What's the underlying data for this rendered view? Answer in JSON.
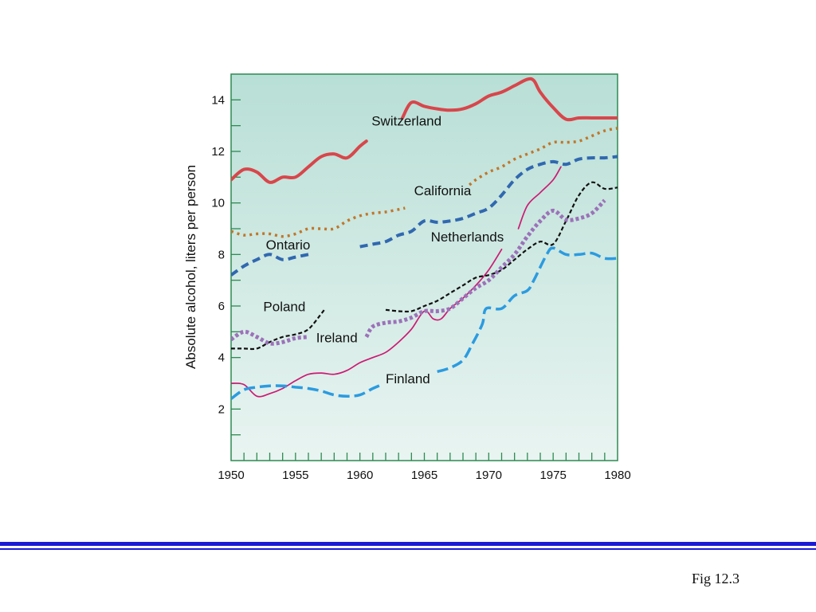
{
  "chart_data": {
    "type": "line",
    "xlabel": "",
    "ylabel": "Absolute alcohol, liters per person",
    "xlim": [
      1950,
      1980
    ],
    "ylim": [
      0,
      15
    ],
    "x_ticks": [
      1950,
      1955,
      1960,
      1965,
      1970,
      1975,
      1980
    ],
    "y_ticks": [
      2,
      4,
      6,
      8,
      10,
      12,
      14
    ],
    "grid": false,
    "legend": "inline labels",
    "background_gradient": [
      "#b8dfd6",
      "#e9f4f1"
    ],
    "series": [
      {
        "name": "Switzerland",
        "color": "#d8464b",
        "dash": "",
        "width": 4,
        "label_pos": [
          1960.9,
          13.0
        ],
        "segments": [
          [
            [
              1950,
              10.9
            ],
            [
              1951,
              11.3
            ],
            [
              1952,
              11.2
            ],
            [
              1953,
              10.8
            ],
            [
              1954,
              11.0
            ],
            [
              1955,
              11.0
            ],
            [
              1956,
              11.4
            ],
            [
              1957,
              11.8
            ],
            [
              1958,
              11.9
            ],
            [
              1959,
              11.75
            ],
            [
              1960,
              12.2
            ],
            [
              1960.5,
              12.4
            ]
          ],
          [
            [
              1963.3,
              13.3
            ],
            [
              1964,
              13.9
            ],
            [
              1965,
              13.75
            ],
            [
              1966,
              13.65
            ],
            [
              1967,
              13.6
            ],
            [
              1968,
              13.65
            ],
            [
              1969,
              13.85
            ],
            [
              1970,
              14.15
            ],
            [
              1971,
              14.3
            ],
            [
              1972,
              14.55
            ],
            [
              1973,
              14.8
            ],
            [
              1973.5,
              14.75
            ],
            [
              1974,
              14.3
            ],
            [
              1975,
              13.7
            ],
            [
              1976,
              13.25
            ],
            [
              1977,
              13.3
            ],
            [
              1978,
              13.3
            ],
            [
              1979,
              13.3
            ],
            [
              1980,
              13.3
            ]
          ]
        ]
      },
      {
        "name": "California",
        "color": "#c0762a",
        "dash": "3 5",
        "width": 3.5,
        "label_pos": [
          1964.2,
          10.3
        ],
        "segments": [
          [
            [
              1950,
              8.9
            ],
            [
              1951,
              8.75
            ],
            [
              1952,
              8.8
            ],
            [
              1953,
              8.8
            ],
            [
              1954,
              8.7
            ],
            [
              1955,
              8.8
            ],
            [
              1956,
              9.0
            ],
            [
              1957,
              9.0
            ],
            [
              1958,
              9.0
            ],
            [
              1959,
              9.3
            ],
            [
              1960,
              9.5
            ],
            [
              1961,
              9.6
            ],
            [
              1962,
              9.65
            ],
            [
              1963,
              9.75
            ],
            [
              1963.5,
              9.8
            ]
          ],
          [
            [
              1968.5,
              10.7
            ],
            [
              1969,
              10.9
            ],
            [
              1970,
              11.2
            ],
            [
              1971,
              11.4
            ],
            [
              1972,
              11.7
            ],
            [
              1973,
              11.9
            ],
            [
              1974,
              12.1
            ],
            [
              1975,
              12.35
            ],
            [
              1976,
              12.35
            ],
            [
              1977,
              12.4
            ],
            [
              1978,
              12.6
            ],
            [
              1979,
              12.8
            ],
            [
              1980,
              12.9
            ]
          ]
        ]
      },
      {
        "name": "Ontario",
        "color": "#3068b0",
        "dash": "10 6",
        "width": 4,
        "label_pos": [
          1952.7,
          8.2
        ],
        "segments": [
          [
            [
              1950,
              7.2
            ],
            [
              1951,
              7.55
            ],
            [
              1952,
              7.8
            ],
            [
              1953,
              8.0
            ],
            [
              1954,
              7.8
            ],
            [
              1955,
              7.9
            ],
            [
              1956,
              8.0
            ]
          ],
          [
            [
              1960,
              8.3
            ],
            [
              1961,
              8.4
            ],
            [
              1962,
              8.5
            ],
            [
              1963,
              8.75
            ],
            [
              1964,
              8.9
            ],
            [
              1965,
              9.3
            ],
            [
              1966,
              9.25
            ],
            [
              1967,
              9.3
            ],
            [
              1968,
              9.4
            ],
            [
              1969,
              9.6
            ],
            [
              1970,
              9.8
            ],
            [
              1971,
              10.3
            ],
            [
              1972,
              10.9
            ],
            [
              1973,
              11.3
            ],
            [
              1974,
              11.5
            ],
            [
              1975,
              11.6
            ],
            [
              1976,
              11.5
            ],
            [
              1977,
              11.7
            ],
            [
              1978,
              11.75
            ],
            [
              1979,
              11.75
            ],
            [
              1980,
              11.8
            ]
          ]
        ]
      },
      {
        "name": "Netherlands",
        "color": "#cc1a75",
        "dash": "",
        "width": 1.7,
        "label_pos": [
          1965.5,
          8.5
        ],
        "segments": [
          [
            [
              1950,
              3.0
            ],
            [
              1951,
              2.95
            ],
            [
              1952,
              2.5
            ],
            [
              1953,
              2.6
            ],
            [
              1954,
              2.8
            ],
            [
              1955,
              3.1
            ],
            [
              1956,
              3.35
            ],
            [
              1957,
              3.4
            ],
            [
              1958,
              3.35
            ],
            [
              1959,
              3.5
            ],
            [
              1960,
              3.8
            ],
            [
              1961,
              4.0
            ],
            [
              1962,
              4.2
            ],
            [
              1963,
              4.6
            ],
            [
              1964,
              5.1
            ],
            [
              1965,
              5.8
            ],
            [
              1965.7,
              5.5
            ],
            [
              1966.3,
              5.5
            ],
            [
              1967,
              5.9
            ],
            [
              1968,
              6.3
            ],
            [
              1969,
              6.8
            ],
            [
              1970,
              7.4
            ],
            [
              1971,
              8.2
            ]
          ],
          [
            [
              1972.3,
              9.0
            ],
            [
              1973,
              9.9
            ],
            [
              1974,
              10.4
            ],
            [
              1975,
              10.9
            ],
            [
              1975.6,
              11.4
            ]
          ]
        ]
      },
      {
        "name": "Poland",
        "color": "#111111",
        "dash": "5 3",
        "width": 2.2,
        "label_pos": [
          1952.5,
          5.8
        ],
        "segments": [
          [
            [
              1950,
              4.35
            ],
            [
              1951,
              4.35
            ],
            [
              1952,
              4.35
            ],
            [
              1953,
              4.6
            ],
            [
              1954,
              4.8
            ],
            [
              1955,
              4.9
            ],
            [
              1956,
              5.1
            ],
            [
              1957,
              5.7
            ],
            [
              1957.3,
              5.9
            ]
          ],
          [
            [
              1962,
              5.85
            ],
            [
              1963,
              5.8
            ],
            [
              1964,
              5.8
            ],
            [
              1965,
              6.0
            ],
            [
              1966,
              6.2
            ],
            [
              1967,
              6.5
            ],
            [
              1968,
              6.8
            ],
            [
              1969,
              7.1
            ],
            [
              1970,
              7.2
            ],
            [
              1971,
              7.4
            ],
            [
              1972,
              7.8
            ],
            [
              1973,
              8.2
            ],
            [
              1974,
              8.5
            ],
            [
              1975,
              8.4
            ],
            [
              1976,
              9.3
            ],
            [
              1977,
              10.3
            ],
            [
              1978,
              10.8
            ],
            [
              1979,
              10.55
            ],
            [
              1980,
              10.6
            ]
          ]
        ]
      },
      {
        "name": "Ireland",
        "color": "#9b72b9",
        "dash": "4 3",
        "width": 5,
        "label_pos": [
          1956.6,
          4.6
        ],
        "segments": [
          [
            [
              1950,
              4.7
            ],
            [
              1951,
              5.0
            ],
            [
              1952,
              4.8
            ],
            [
              1953,
              4.55
            ],
            [
              1954,
              4.6
            ],
            [
              1955,
              4.75
            ],
            [
              1956,
              4.8
            ]
          ],
          [
            [
              1960.5,
              4.8
            ],
            [
              1961,
              5.2
            ],
            [
              1962,
              5.35
            ],
            [
              1963,
              5.4
            ],
            [
              1964,
              5.55
            ],
            [
              1965,
              5.8
            ],
            [
              1966,
              5.8
            ],
            [
              1967,
              5.9
            ],
            [
              1968,
              6.3
            ],
            [
              1969,
              6.7
            ],
            [
              1970,
              7.0
            ],
            [
              1971,
              7.5
            ],
            [
              1972,
              8.0
            ],
            [
              1973,
              8.7
            ],
            [
              1974,
              9.3
            ],
            [
              1975,
              9.7
            ],
            [
              1976,
              9.35
            ],
            [
              1977,
              9.4
            ],
            [
              1978,
              9.6
            ],
            [
              1979,
              10.1
            ]
          ]
        ]
      },
      {
        "name": "Finland",
        "color": "#2b9be0",
        "dash": "14 6",
        "width": 3.5,
        "label_pos": [
          1962,
          3.0
        ],
        "segments": [
          [
            [
              1950,
              2.4
            ],
            [
              1951,
              2.75
            ],
            [
              1952,
              2.85
            ],
            [
              1953,
              2.9
            ],
            [
              1954,
              2.9
            ],
            [
              1955,
              2.85
            ],
            [
              1956,
              2.8
            ],
            [
              1957,
              2.7
            ],
            [
              1958,
              2.55
            ],
            [
              1959,
              2.5
            ],
            [
              1960,
              2.55
            ],
            [
              1961,
              2.8
            ],
            [
              1961.7,
              2.95
            ]
          ],
          [
            [
              1966,
              3.45
            ],
            [
              1967,
              3.6
            ],
            [
              1968,
              3.9
            ],
            [
              1968.7,
              4.5
            ],
            [
              1969.5,
              5.3
            ],
            [
              1969.8,
              5.9
            ],
            [
              1971,
              5.9
            ],
            [
              1972,
              6.4
            ],
            [
              1973,
              6.6
            ],
            [
              1973.5,
              7.0
            ],
            [
              1974.5,
              8.0
            ],
            [
              1975,
              8.25
            ],
            [
              1976,
              8.0
            ],
            [
              1977,
              8.0
            ],
            [
              1978,
              8.05
            ],
            [
              1979,
              7.85
            ],
            [
              1980,
              7.85
            ]
          ]
        ]
      }
    ]
  },
  "caption": "Fig 12.3",
  "rules": {
    "thick_color": "#1a1ad6",
    "thin_color": "#1a1ad6"
  }
}
